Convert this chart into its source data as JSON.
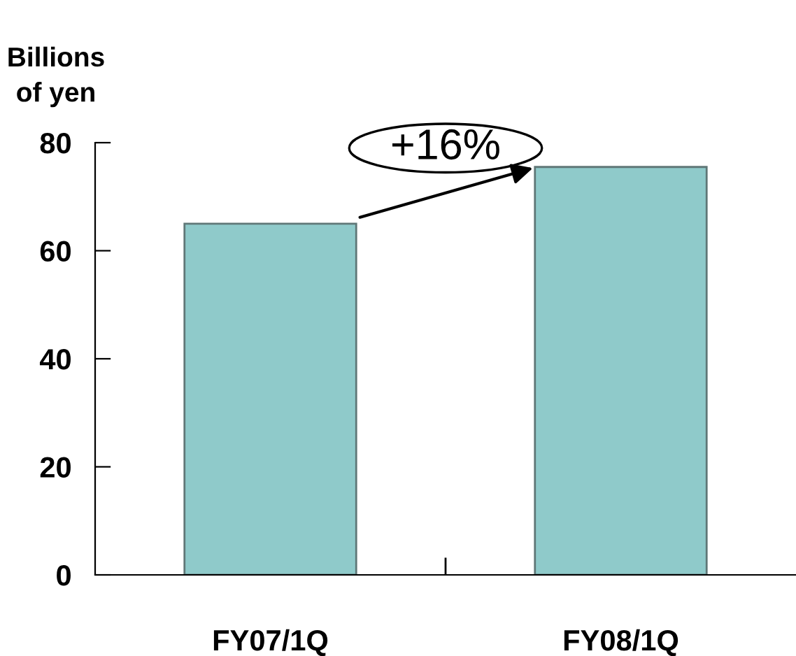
{
  "chart_data": {
    "type": "bar",
    "ylabel": "Billions\nof yen",
    "categories": [
      "FY07/1Q",
      "FY08/1Q"
    ],
    "values": [
      65,
      75.5
    ],
    "color": "#8fcaca",
    "ylim": [
      0,
      80
    ],
    "yticks": [
      0,
      20,
      40,
      60,
      80
    ],
    "grid": false,
    "annotations": [
      "+16%"
    ]
  }
}
